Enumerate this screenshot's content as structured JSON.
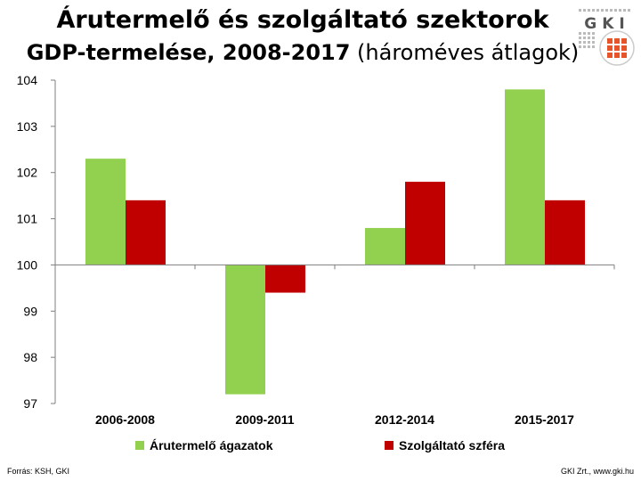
{
  "title": {
    "line1": "Árutermelő és szolgáltató szektorok",
    "line2_bold": "GDP-termelése, 2008-2017",
    "line2_rest": " (hároméves átlagok)"
  },
  "logo": {
    "text": "GKI",
    "accent": "#e8542a"
  },
  "footer": {
    "source": "Forrás: KSH, GKI",
    "credit": "GKI Zrt., www.gki.hu"
  },
  "chart_data": {
    "type": "bar",
    "categories": [
      "2006-2008",
      "2009-2011",
      "2012-2014",
      "2015-2017"
    ],
    "series": [
      {
        "name": "Árutermelő ágazatok",
        "color": "#92d050",
        "values": [
          102.3,
          97.2,
          100.8,
          103.8
        ]
      },
      {
        "name": "Szolgáltató szféra",
        "color": "#c00000",
        "values": [
          101.4,
          99.4,
          101.8,
          101.4
        ]
      }
    ],
    "ylim": [
      97,
      104
    ],
    "yticks": [
      97,
      98,
      99,
      100,
      101,
      102,
      103,
      104
    ],
    "baseline": 100,
    "grid": false,
    "legend": "bottom",
    "xlabel": "",
    "ylabel": ""
  }
}
